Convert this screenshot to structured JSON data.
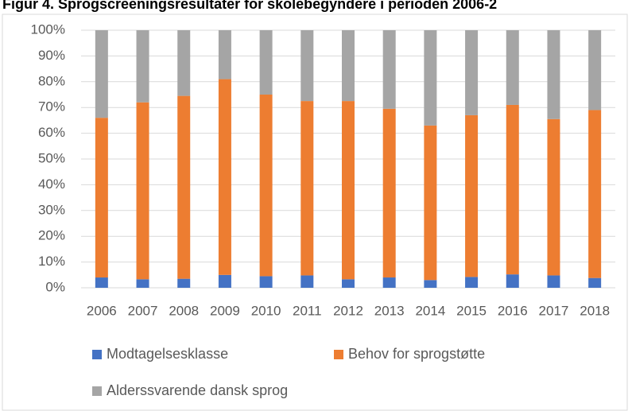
{
  "chart_data": {
    "type": "stacked_bar",
    "title": "Figur 4. Sprogscreeningsresultater for skolebegyndere i perioden 2006-2",
    "categories": [
      "2006",
      "2007",
      "2008",
      "2009",
      "2010",
      "2011",
      "2012",
      "2013",
      "2014",
      "2015",
      "2016",
      "2017",
      "2018"
    ],
    "series": [
      {
        "name": "Modtagelsesklasse",
        "color": "#4472c4",
        "values": [
          4,
          3.3,
          3.5,
          5,
          4.5,
          4.8,
          3.3,
          4,
          3,
          4.2,
          5.2,
          4.8,
          3.8
        ]
      },
      {
        "name": "Behov for sprogstøtte",
        "color": "#ed7d31",
        "values": [
          62,
          68.7,
          71,
          76,
          70.5,
          67.7,
          69.2,
          65.5,
          60,
          62.8,
          65.8,
          60.7,
          65.2
        ]
      },
      {
        "name": "Alderssvarende dansk sprog",
        "color": "#a5a5a5",
        "values": [
          34,
          28,
          25.5,
          19,
          25,
          27.5,
          27.5,
          30.5,
          37,
          33,
          29,
          34.5,
          31
        ]
      }
    ],
    "ylim": [
      0,
      100
    ],
    "yticks": [
      {
        "value": 0,
        "label": "0%"
      },
      {
        "value": 10,
        "label": "10%"
      },
      {
        "value": 20,
        "label": "20%"
      },
      {
        "value": 30,
        "label": "30%"
      },
      {
        "value": 40,
        "label": "40%"
      },
      {
        "value": 50,
        "label": "50%"
      },
      {
        "value": 60,
        "label": "60%"
      },
      {
        "value": 70,
        "label": "70%"
      },
      {
        "value": 80,
        "label": "80%"
      },
      {
        "value": 90,
        "label": "90%"
      },
      {
        "value": 100,
        "label": "100%"
      }
    ],
    "grid": true
  }
}
